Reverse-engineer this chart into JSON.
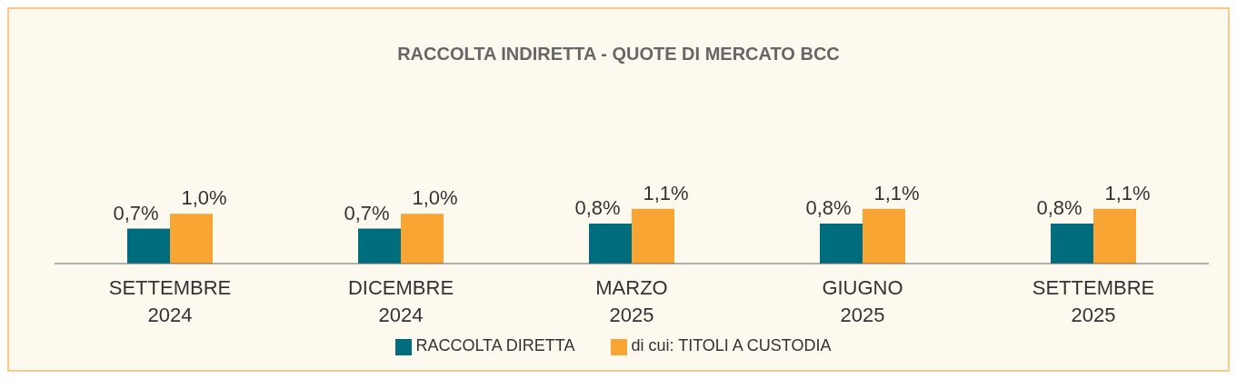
{
  "chart_data": {
    "type": "bar",
    "title": "RACCOLTA INDIRETTA - QUOTE DI MERCATO BCC",
    "categories": [
      "SETTEMBRE\n2024",
      "DICEMBRE\n2024",
      "MARZO\n2025",
      "GIUGNO\n2025",
      "SETTEMBRE\n2025"
    ],
    "series": [
      {
        "name": "RACCOLTA DIRETTA",
        "color": "#006d7e",
        "values": [
          0.7,
          0.7,
          0.8,
          0.8,
          0.8
        ],
        "value_labels": [
          "0,7%",
          "0,7%",
          "0,8%",
          "0,8%",
          "0,8%"
        ]
      },
      {
        "name": "di cui: TITOLI A CUSTODIA",
        "color": "#f9a533",
        "values": [
          1.0,
          1.0,
          1.1,
          1.1,
          1.1
        ],
        "value_labels": [
          "1,0%",
          "1,0%",
          "1,1%",
          "1,1%",
          "1,1%"
        ]
      }
    ],
    "legend": "bottom",
    "grid": false
  }
}
